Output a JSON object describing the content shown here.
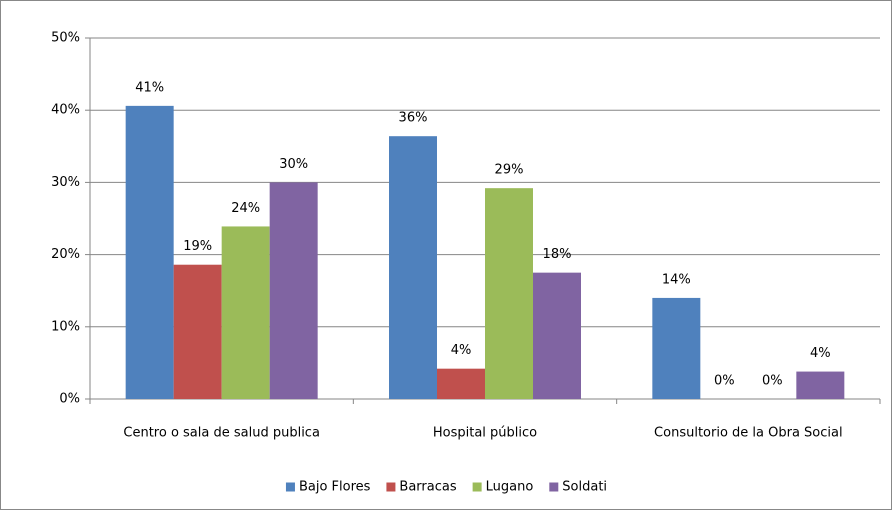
{
  "chart_data": {
    "type": "bar",
    "categories": [
      "Centro o sala de salud publica",
      "Hospital público",
      "Consultorio de la Obra Social"
    ],
    "series": [
      {
        "name": "Bajo Flores",
        "color": "#4f81bd",
        "values": [
          40.6,
          36.4,
          14.0
        ],
        "value_labels": [
          "41%",
          "36%",
          "14%"
        ]
      },
      {
        "name": "Barracas",
        "color": "#c0504d",
        "values": [
          18.6,
          4.2,
          0
        ],
        "value_labels": [
          "19%",
          "4%",
          "0%"
        ]
      },
      {
        "name": "Lugano",
        "color": "#9bbb59",
        "values": [
          23.9,
          29.2,
          0
        ],
        "value_labels": [
          "24%",
          "29%",
          "0%"
        ]
      },
      {
        "name": "Soldati",
        "color": "#8064a2",
        "values": [
          30.0,
          17.5,
          3.8
        ],
        "value_labels": [
          "30%",
          "18%",
          "4%"
        ]
      }
    ],
    "ylim": [
      0,
      50
    ],
    "yticks": [
      {
        "value": 0,
        "label": "0%"
      },
      {
        "value": 10,
        "label": "10%"
      },
      {
        "value": 20,
        "label": "20%"
      },
      {
        "value": 30,
        "label": "30%"
      },
      {
        "value": 40,
        "label": "40%"
      },
      {
        "value": 50,
        "label": "50%"
      }
    ],
    "grid": true,
    "legend": "bottom"
  }
}
